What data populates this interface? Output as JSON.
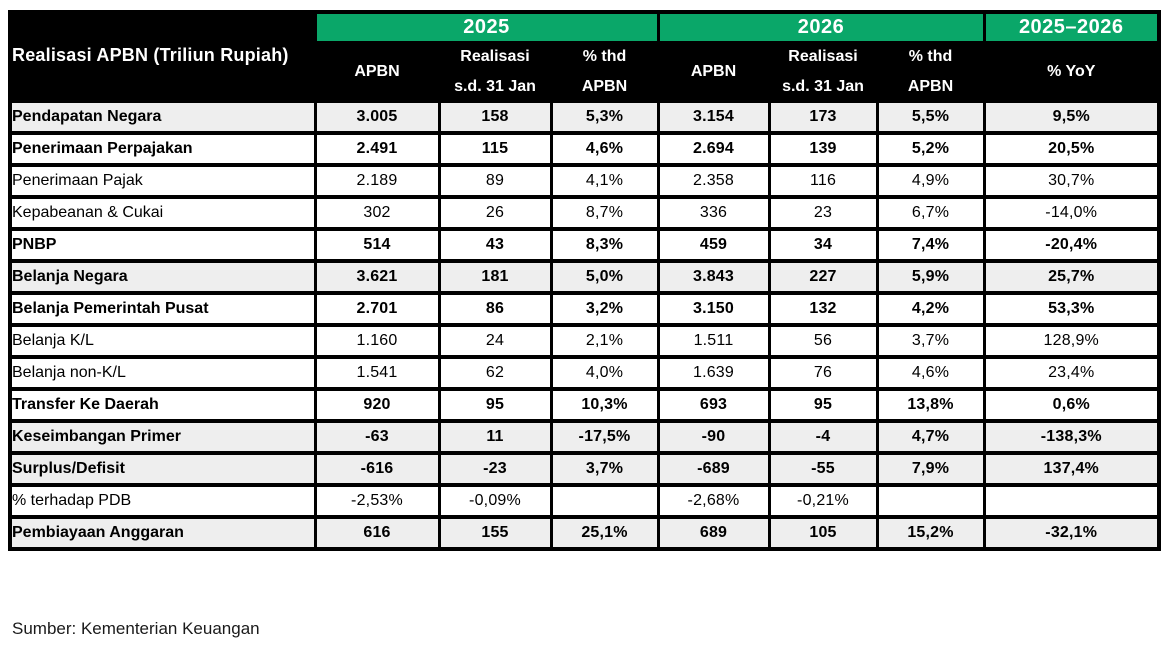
{
  "colors": {
    "header_green": "#0aa769",
    "header_black": "#000000",
    "shaded_row": "#eeeeee",
    "border": "#000000",
    "header_text": "#ffffff",
    "body_text": "#000000"
  },
  "chart_data": {
    "type": "table",
    "title": "Realisasi APBN (Triliun Rupiah)",
    "year_groups": [
      {
        "label": "2025",
        "span": 3
      },
      {
        "label": "2026",
        "span": 3
      },
      {
        "label": "2025–2026",
        "span": 1
      }
    ],
    "sub_columns": [
      {
        "line1": "APBN",
        "line2": ""
      },
      {
        "line1": "Realisasi",
        "line2": "s.d. 31 Jan"
      },
      {
        "line1": "% thd",
        "line2": "APBN"
      },
      {
        "line1": "APBN",
        "line2": ""
      },
      {
        "line1": "Realisasi",
        "line2": "s.d. 31 Jan"
      },
      {
        "line1": "% thd",
        "line2": "APBN"
      },
      {
        "line1": "% YoY",
        "line2": ""
      }
    ],
    "rows": [
      {
        "label": "Pendapatan Negara",
        "indent": 0,
        "bold": true,
        "shaded": true,
        "values": [
          "3.005",
          "158",
          "5,3%",
          "3.154",
          "173",
          "5,5%",
          "9,5%"
        ]
      },
      {
        "label": "Penerimaan Perpajakan",
        "indent": 1,
        "bold": true,
        "shaded": false,
        "values": [
          "2.491",
          "115",
          "4,6%",
          "2.694",
          "139",
          "5,2%",
          "20,5%"
        ]
      },
      {
        "label": "Penerimaan Pajak",
        "indent": 2,
        "bold": false,
        "shaded": false,
        "values": [
          "2.189",
          "89",
          "4,1%",
          "2.358",
          "116",
          "4,9%",
          "30,7%"
        ]
      },
      {
        "label": "Kepabeanan & Cukai",
        "indent": 2,
        "bold": false,
        "shaded": false,
        "values": [
          "302",
          "26",
          "8,7%",
          "336",
          "23",
          "6,7%",
          "-14,0%"
        ]
      },
      {
        "label": "PNBP",
        "indent": 1,
        "bold": true,
        "shaded": false,
        "values": [
          "514",
          "43",
          "8,3%",
          "459",
          "34",
          "7,4%",
          "-20,4%"
        ]
      },
      {
        "label": "Belanja Negara",
        "indent": 0,
        "bold": true,
        "shaded": true,
        "values": [
          "3.621",
          "181",
          "5,0%",
          "3.843",
          "227",
          "5,9%",
          "25,7%"
        ]
      },
      {
        "label": "Belanja Pemerintah Pusat",
        "indent": 1,
        "bold": true,
        "shaded": false,
        "values": [
          "2.701",
          "86",
          "3,2%",
          "3.150",
          "132",
          "4,2%",
          "53,3%"
        ]
      },
      {
        "label": "Belanja K/L",
        "indent": 2,
        "bold": false,
        "shaded": false,
        "values": [
          "1.160",
          "24",
          "2,1%",
          "1.511",
          "56",
          "3,7%",
          "128,9%"
        ]
      },
      {
        "label": "Belanja non-K/L",
        "indent": 2,
        "bold": false,
        "shaded": false,
        "values": [
          "1.541",
          "62",
          "4,0%",
          "1.639",
          "76",
          "4,6%",
          "23,4%"
        ]
      },
      {
        "label": "Transfer Ke Daerah",
        "indent": 1,
        "bold": true,
        "shaded": false,
        "values": [
          "920",
          "95",
          "10,3%",
          "693",
          "95",
          "13,8%",
          "0,6%"
        ]
      },
      {
        "label": "Keseimbangan Primer",
        "indent": 0,
        "bold": true,
        "shaded": true,
        "values": [
          "-63",
          "11",
          "-17,5%",
          "-90",
          "-4",
          "4,7%",
          "-138,3%"
        ]
      },
      {
        "label": "Surplus/Defisit",
        "indent": 0,
        "bold": true,
        "shaded": true,
        "values": [
          "-616",
          "-23",
          "3,7%",
          "-689",
          "-55",
          "7,9%",
          "137,4%"
        ]
      },
      {
        "label": "% terhadap PDB",
        "indent": 1,
        "bold": false,
        "shaded": false,
        "values": [
          "-2,53%",
          "-0,09%",
          "",
          "-2,68%",
          "-0,21%",
          "",
          ""
        ]
      },
      {
        "label": "Pembiayaan Anggaran",
        "indent": 0,
        "bold": true,
        "shaded": true,
        "values": [
          "616",
          "155",
          "25,1%",
          "689",
          "105",
          "15,2%",
          "-32,1%"
        ]
      }
    ],
    "source": "Sumber: Kementerian Keuangan"
  }
}
